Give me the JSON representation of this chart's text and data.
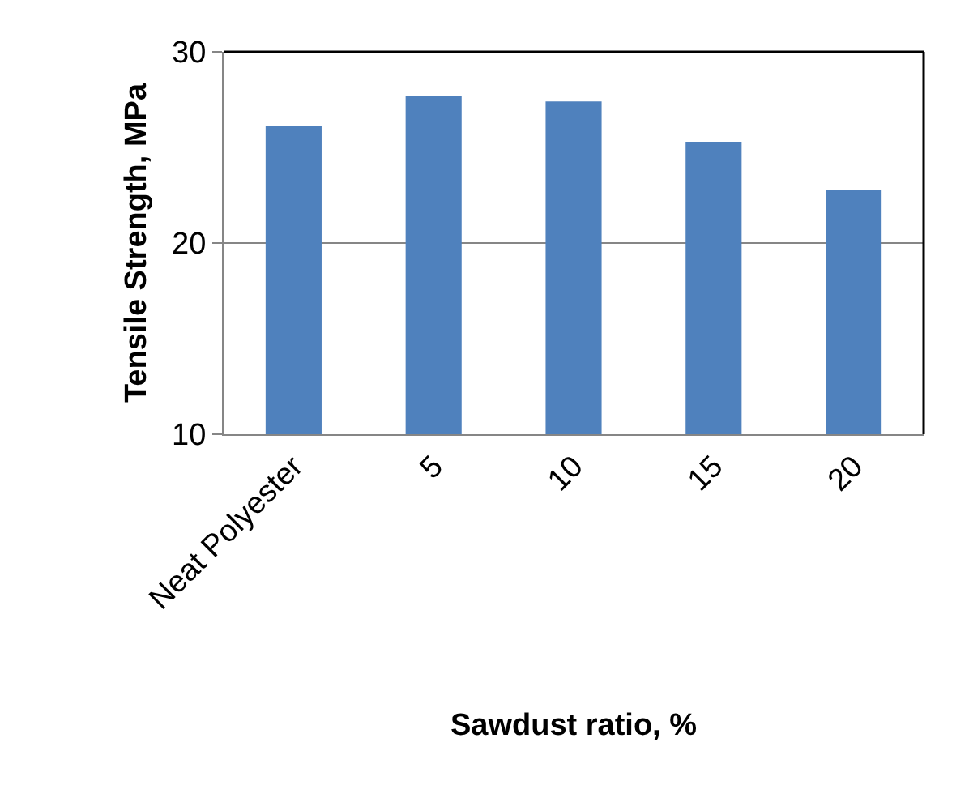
{
  "chart_data": {
    "type": "bar",
    "xlabel": "Sawdust ratio, %",
    "ylabel": "Tensile Strength, MPa",
    "categories": [
      "Neat Polyester",
      "5",
      "10",
      "15",
      "20"
    ],
    "values": [
      26.1,
      27.7,
      27.4,
      25.3,
      22.8
    ],
    "color": "#4f81bd",
    "ylim": [
      10,
      30
    ],
    "yticks": [
      10,
      20,
      30
    ],
    "grid": "y",
    "legend": false
  }
}
